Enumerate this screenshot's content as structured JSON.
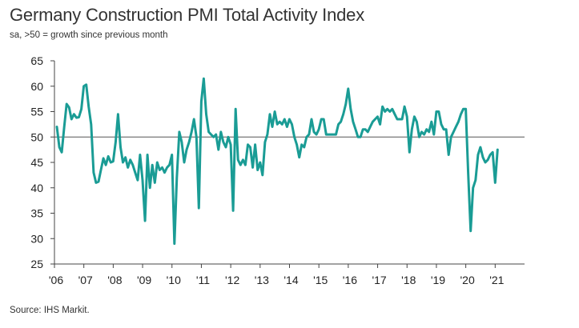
{
  "chart_data": {
    "type": "line",
    "title": "Germany Construction PMI Total Activity Index",
    "subtitle": "sa, >50 = growth since previous month",
    "source": "Source: IHS Markit.",
    "xlabel": "",
    "ylabel": "",
    "ylim": [
      25,
      65
    ],
    "yticks": [
      25,
      30,
      35,
      40,
      45,
      50,
      55,
      60,
      65
    ],
    "xticks": [
      "'06",
      "'07",
      "'08",
      "'09",
      "'10",
      "'11",
      "'12",
      "'13",
      "'14",
      "'15",
      "'16",
      "'17",
      "'18",
      "'19",
      "'20",
      "'21"
    ],
    "reference_line": 50,
    "grid": false,
    "series_color": "#1a9c95",
    "series": [
      {
        "name": "",
        "x_start": "2006-01",
        "frequency": "monthly",
        "values": [
          52.0,
          48.0,
          47.0,
          52.0,
          56.5,
          55.8,
          53.5,
          54.5,
          53.8,
          53.9,
          55.5,
          60.0,
          60.3,
          56.0,
          52.5,
          43.0,
          41.0,
          41.2,
          43.5,
          45.8,
          44.5,
          46.2,
          45.0,
          45.2,
          49.0,
          54.5,
          48.0,
          45.0,
          46.0,
          44.0,
          45.5,
          44.5,
          43.0,
          41.5,
          46.5,
          41.5,
          33.5,
          46.5,
          40.0,
          44.5,
          41.0,
          45.0,
          43.5,
          44.0,
          43.0,
          44.0,
          44.5,
          46.5,
          29.0,
          42.0,
          51.0,
          49.0,
          45.0,
          47.5,
          49.0,
          51.0,
          53.5,
          50.0,
          36.0,
          57.0,
          61.5,
          54.5,
          51.0,
          50.5,
          50.0,
          50.5,
          47.5,
          51.0,
          49.0,
          48.0,
          50.0,
          48.5,
          35.5,
          55.5,
          45.5,
          44.5,
          45.5,
          44.5,
          48.5,
          48.0,
          44.0,
          48.5,
          43.5,
          45.0,
          42.5,
          49.0,
          50.5,
          54.5,
          52.0,
          55.0,
          52.5,
          53.0,
          52.5,
          53.5,
          52.0,
          53.5,
          52.5,
          50.0,
          48.5,
          46.0,
          48.5,
          48.0,
          50.0,
          50.5,
          53.5,
          51.0,
          50.5,
          51.5,
          53.5,
          53.5,
          50.5,
          50.5,
          50.5,
          50.5,
          50.5,
          52.5,
          53.0,
          54.5,
          56.5,
          59.5,
          55.5,
          53.0,
          51.5,
          50.0,
          50.0,
          51.5,
          51.5,
          51.0,
          52.0,
          53.0,
          53.5,
          54.0,
          52.5,
          56.0,
          55.0,
          55.5,
          55.0,
          55.5,
          54.5,
          53.5,
          53.5,
          53.5,
          56.0,
          54.0,
          47.0,
          51.5,
          54.0,
          53.0,
          50.0,
          51.0,
          50.5,
          51.5,
          51.0,
          53.0,
          50.5,
          55.0,
          55.0,
          52.5,
          51.5,
          51.5,
          46.5,
          50.0,
          51.0,
          52.0,
          53.0,
          54.5,
          55.5,
          55.5,
          43.0,
          31.5,
          40.0,
          41.5,
          46.5,
          48.0,
          46.0,
          45.0,
          45.5,
          46.5,
          47.0,
          41.0,
          47.5
        ]
      }
    ]
  }
}
